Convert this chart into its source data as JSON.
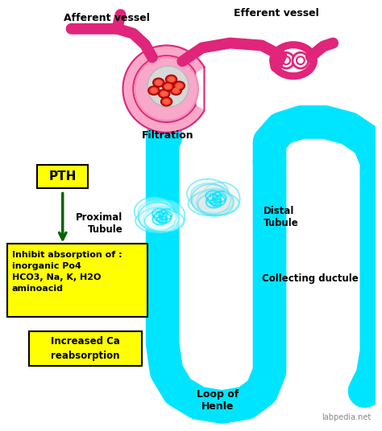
{
  "bg_color": "#ffffff",
  "cyan_color": "#00e5ff",
  "pink_light": "#f8a8c8",
  "pink_medium": "#f48cb4",
  "pink_dark": "#e0257a",
  "red_cell": "#e53030",
  "red_cell_dark": "#cc1010",
  "red_highlight": "#ff9090",
  "gray_ball": "#c8c8c8",
  "yellow_box": "#ffff00",
  "green_arrow": "#006400",
  "text_color": "#000000",
  "gray_text": "#888888",
  "afferent_label": "Afferent vessel",
  "efferent_label": "Efferent vessel",
  "filtration_label": "Filtration",
  "proximal_label": "Proximal\nTubule",
  "distal_label": "Distal\nTubule",
  "collecting_label": "Collecting ductule",
  "loop_label": "Loop of\nHenle",
  "pth_label": "PTH",
  "inhibit_text": "Inhibit absorption of :\ninorganic Po4\nHCO3, Na, K, H2O\naminoacid",
  "ca_text": "Increased Ca\nreabsorption",
  "watermark": "labpedia.net"
}
